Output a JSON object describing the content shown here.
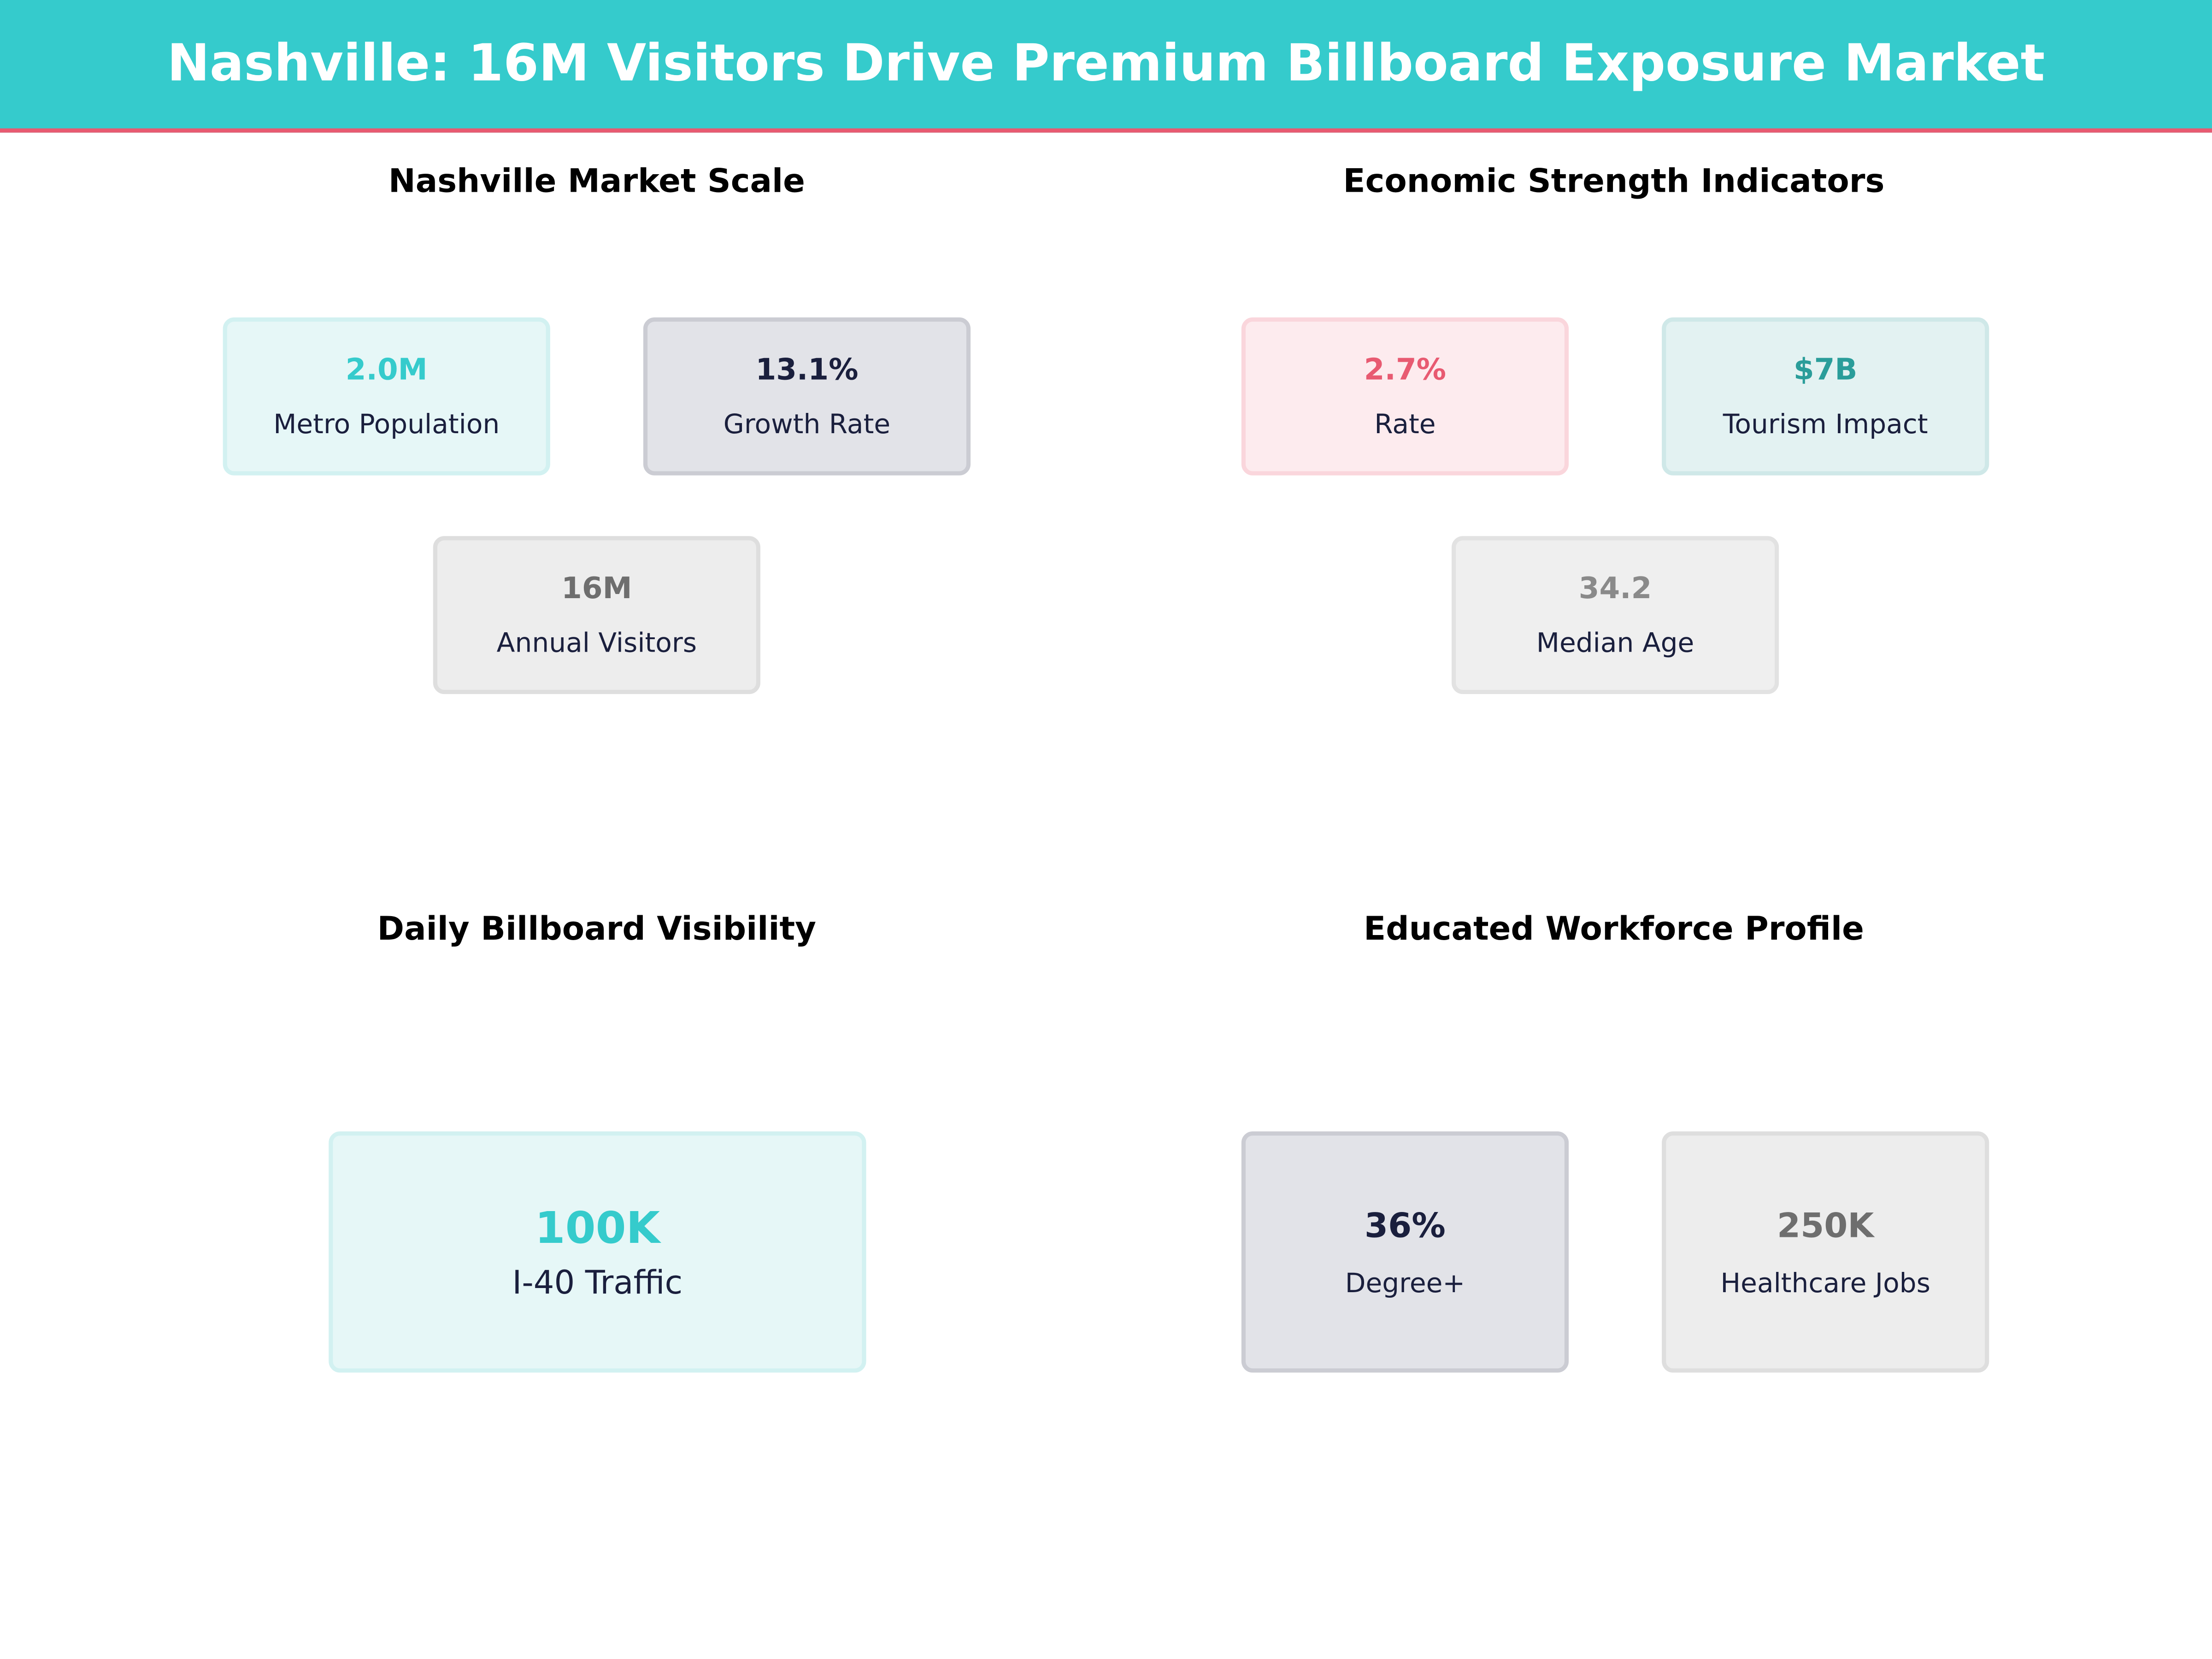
{
  "title": "Nashville: 16M Visitors Drive Premium Billboard Exposure Market",
  "colors": {
    "header": "#35CBCC",
    "accent_line": "#E85A71"
  },
  "sections": [
    {
      "title": "Nashville Market Scale",
      "cards": [
        {
          "value": "2.0M",
          "label": "Metro Population",
          "value_color": "#35CBCC"
        },
        {
          "value": "13.1%",
          "label": "Growth Rate",
          "value_color": "#1A1F3D"
        },
        {
          "value": "16M",
          "label": "Annual Visitors",
          "value_color": "#6E6E6E"
        }
      ]
    },
    {
      "title": "Economic Strength Indicators",
      "cards": [
        {
          "value": "2.7%",
          "label": "Rate",
          "value_color": "#E85A71"
        },
        {
          "value": "$7B",
          "label": "Tourism Impact",
          "value_color": "#2A9D9A"
        },
        {
          "value": "34.2",
          "label": "Median Age",
          "value_color": "#8A8A8A"
        }
      ]
    },
    {
      "title": "Daily Billboard Visibility",
      "cards": [
        {
          "value": "100K",
          "label": "I-40 Traffic",
          "value_color": "#35CBCC"
        }
      ]
    },
    {
      "title": "Educated Workforce Profile",
      "cards": [
        {
          "value": "36%",
          "label": "Degree+",
          "value_color": "#1A1F3D"
        },
        {
          "value": "250K",
          "label": "Healthcare Jobs",
          "value_color": "#6E6E6E"
        }
      ]
    }
  ]
}
